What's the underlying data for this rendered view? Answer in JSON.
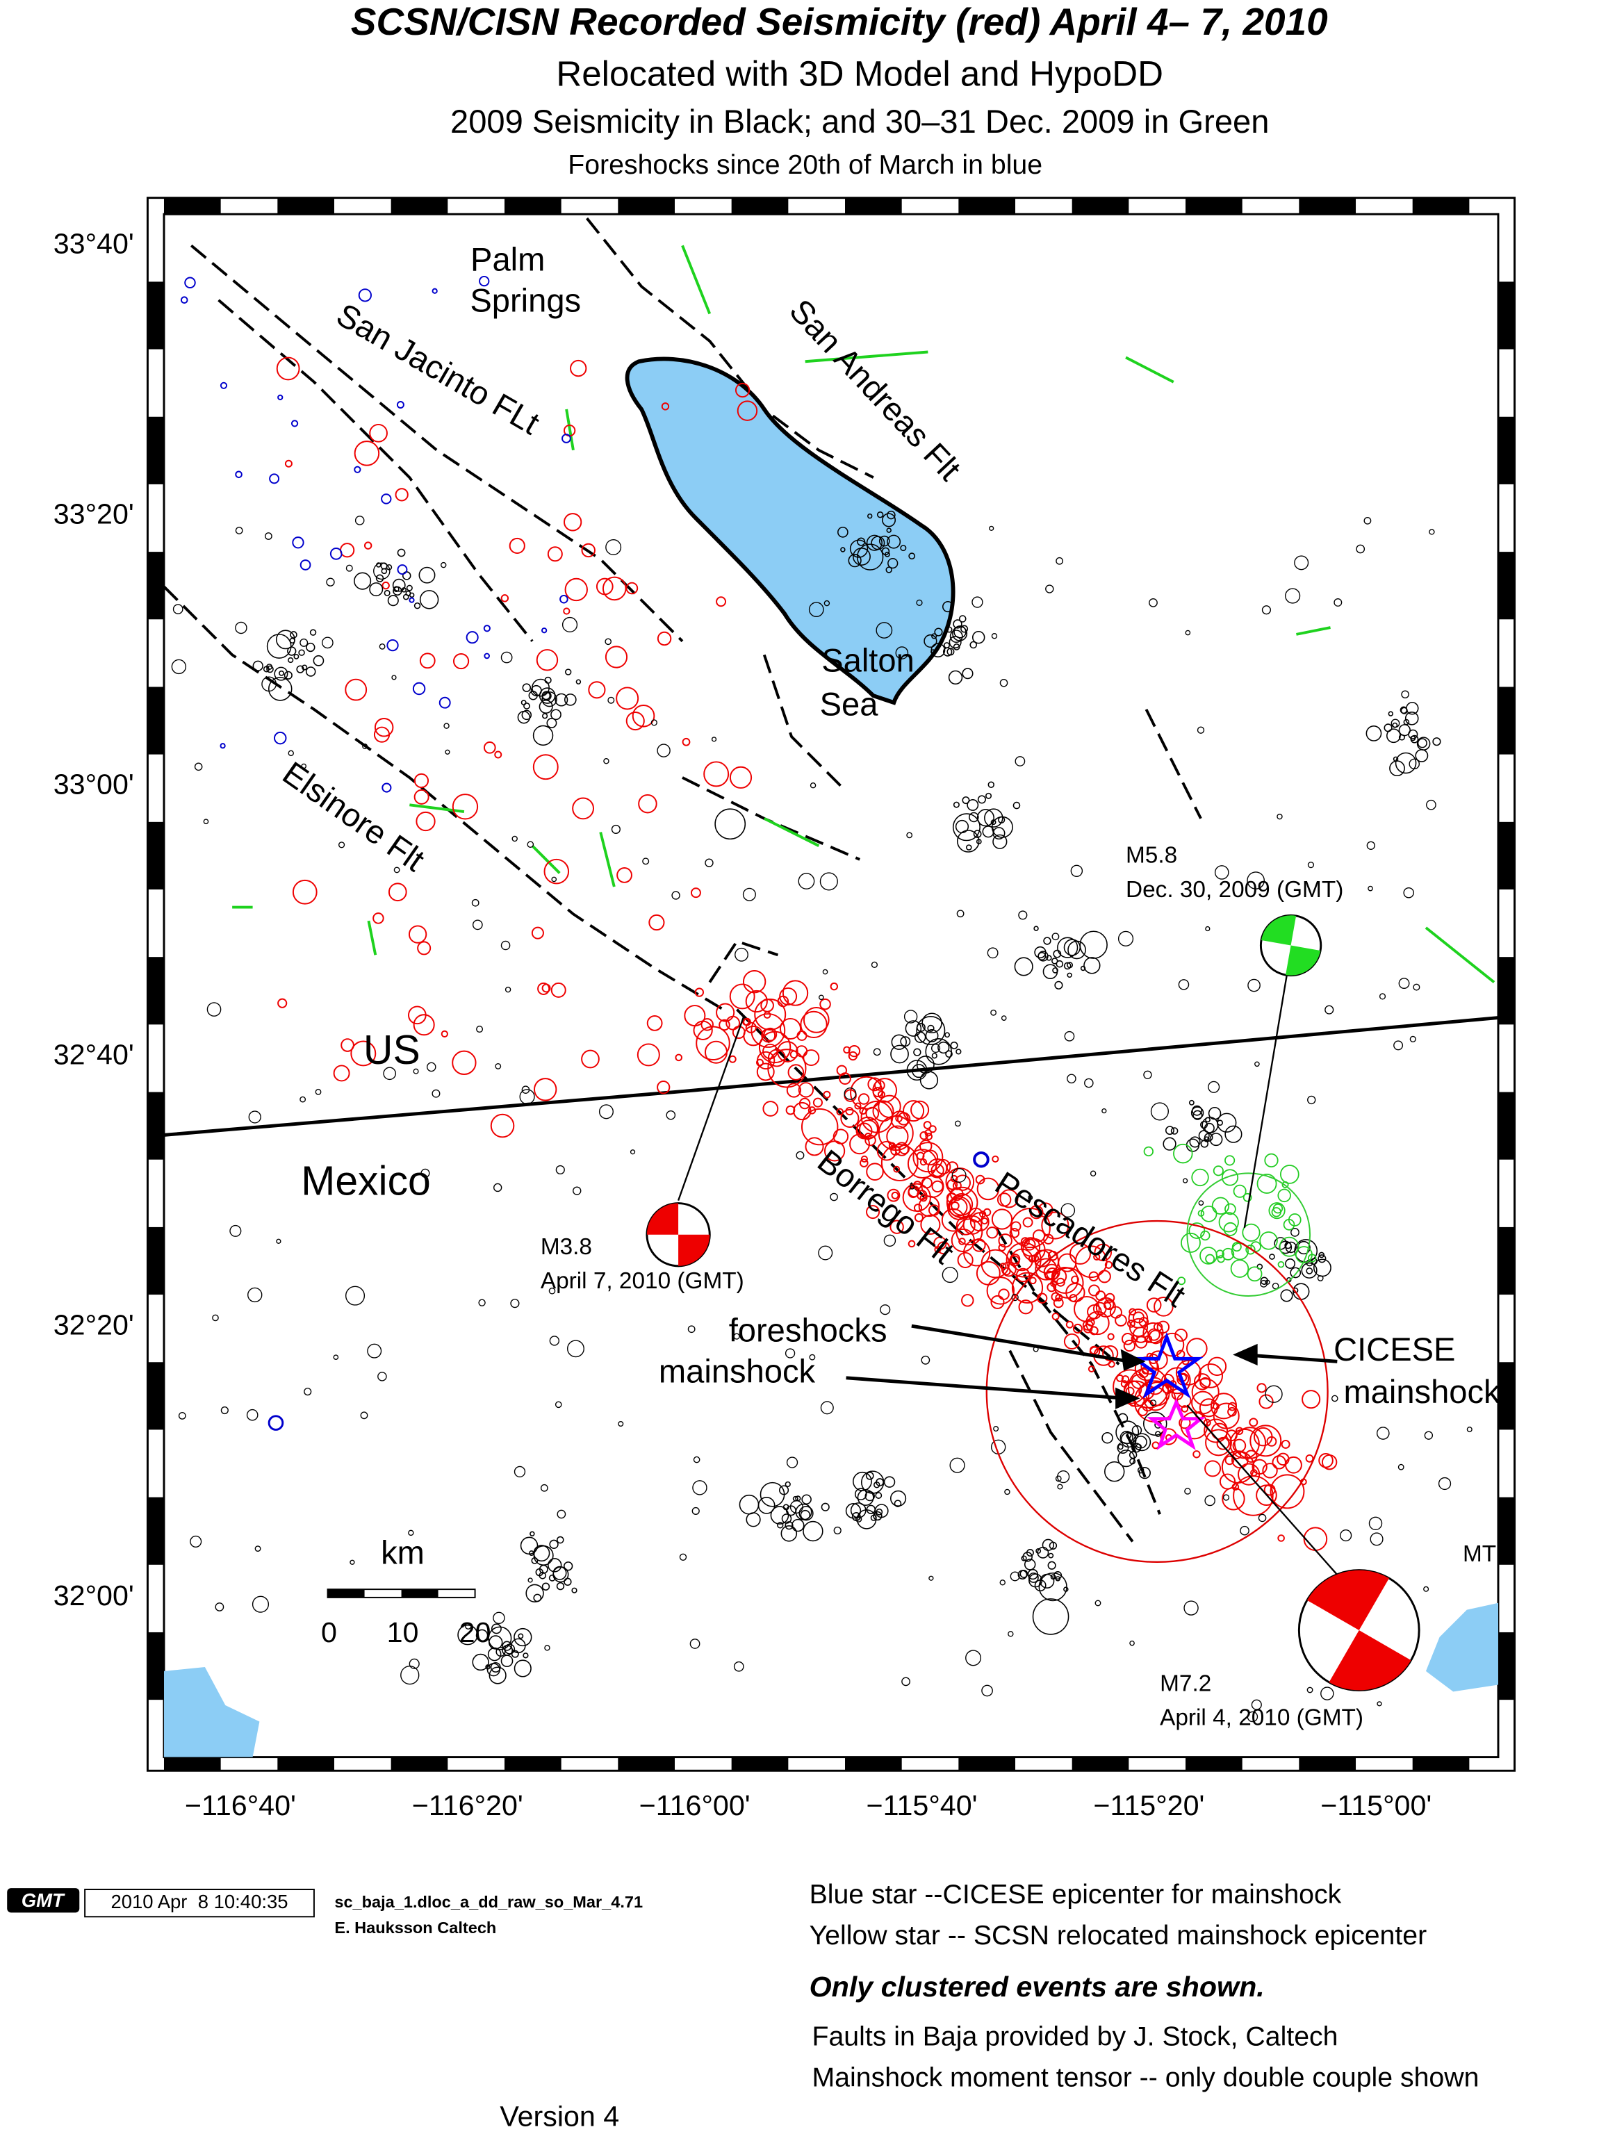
{
  "header": {
    "title": "SCSN/CISN Recorded Seismicity (red) April 4– 7, 2010",
    "subtitle": "Relocated with 3D Model and HypoDD",
    "line3": "2009 Seismicity in Black; and 30–31 Dec. 2009 in Green",
    "line4": "Foreshocks since 20th of March in blue"
  },
  "map": {
    "lat_labels": [
      "33°40'",
      "33°20'",
      "33°00'",
      "32°40'",
      "32°20'",
      "32°00'"
    ],
    "lon_labels": [
      "−116°40'",
      "−116°20'",
      "−116°00'",
      "−115°40'",
      "−115°20'",
      "−115°00'"
    ],
    "places": {
      "palm": "Palm",
      "springs": "Springs",
      "san_jacinto": "San Jacinto FLt",
      "san_andreas": "San Andreas Flt",
      "salton": "Salton",
      "sea": "Sea",
      "elsinore": "Elsinore Flt",
      "us": "US",
      "mexico": "Mexico",
      "borrego": "Borrego Flt",
      "pescadores": "Pescadores Flt"
    },
    "events": {
      "m58": "M5.8",
      "m58_date": "Dec. 30, 2009 (GMT)",
      "m38": "M3.8",
      "m38_date": "April 7, 2010 (GMT)",
      "m72": "M7.2",
      "m72_date": "April 4, 2010 (GMT)",
      "foreshocks": "foreshocks",
      "mainshock": "mainshock",
      "cicese": "CICESE",
      "cicese2": "mainshock",
      "mt": "MT"
    },
    "scale": {
      "unit": "km",
      "ticks": [
        "0",
        "10",
        "20"
      ]
    }
  },
  "footer": {
    "logo": "GMT",
    "timestamp": "2010 Apr  8 10:40:35",
    "file": "sc_baja_1.dloc_a_dd_raw_so_Mar_4.71",
    "author": "E. Hauksson Caltech",
    "notes": [
      "Blue star --CICESE epicenter for mainshock",
      "Yellow star -- SCSN relocated mainshock epicenter",
      "Only clustered events are shown.",
      "Faults in Baja provided by J. Stock, Caltech",
      "Mainshock moment tensor -- only double couple shown"
    ],
    "version": "Version 4"
  }
}
